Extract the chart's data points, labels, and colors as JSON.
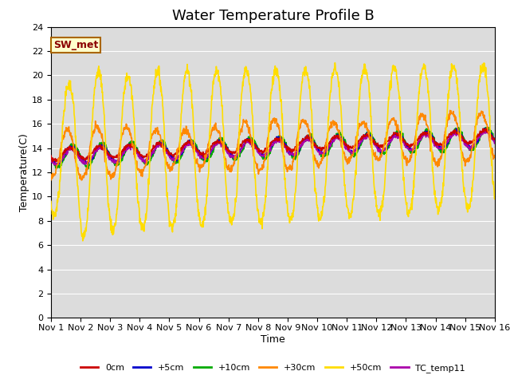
{
  "title": "Water Temperature Profile B",
  "xlabel": "Time",
  "ylabel": "Temperature(C)",
  "xlim": [
    0,
    15
  ],
  "ylim": [
    0,
    24
  ],
  "yticks": [
    0,
    2,
    4,
    6,
    8,
    10,
    12,
    14,
    16,
    18,
    20,
    22,
    24
  ],
  "xtick_labels": [
    "Nov 1",
    "Nov 2",
    "Nov 3",
    "Nov 4",
    "Nov 5",
    "Nov 6",
    "Nov 7",
    "Nov 8",
    "Nov 9",
    "Nov 10",
    "Nov 11",
    "Nov 12",
    "Nov 13",
    "Nov 14",
    "Nov 15",
    "Nov 16"
  ],
  "series_colors": {
    "0cm": "#cc0000",
    "+5cm": "#0000cc",
    "+10cm": "#00aa00",
    "+30cm": "#ff8800",
    "+50cm": "#ffdd00",
    "TC_temp11": "#aa00aa"
  },
  "lw": 1.2,
  "annotation_text": "SW_met",
  "bg_color": "#dcdcdc",
  "fig_bg": "#ffffff",
  "title_fontsize": 13,
  "tick_fontsize": 8,
  "label_fontsize": 9,
  "legend_fontsize": 8
}
